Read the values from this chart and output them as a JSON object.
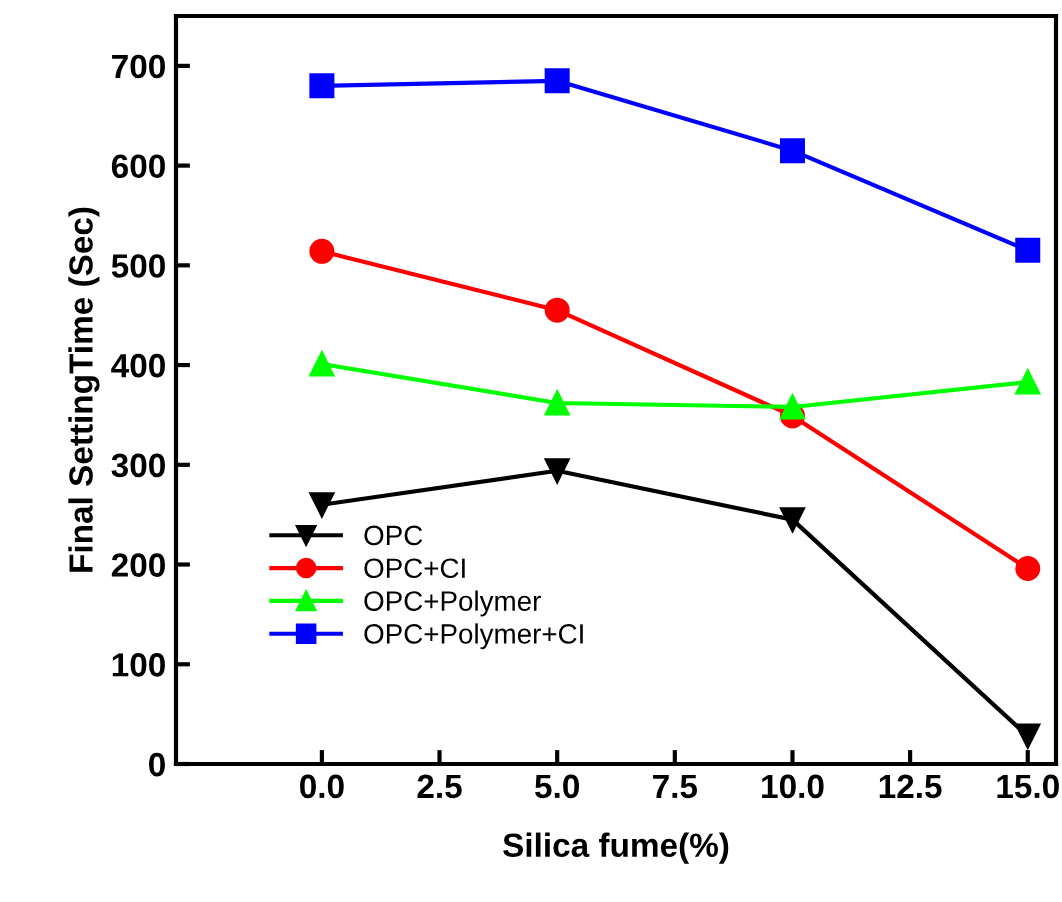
{
  "chart_data": {
    "type": "line",
    "xlabel": "Silica fume(%)",
    "ylabel": "Final SettingTime (Sec)",
    "x": [
      0,
      5,
      10,
      15
    ],
    "xlim": [
      -3.1,
      15.6
    ],
    "xticks": [
      {
        "value": 0,
        "label": "0.0"
      },
      {
        "value": 2.5,
        "label": "2.5"
      },
      {
        "value": 5,
        "label": "5.0"
      },
      {
        "value": 7.5,
        "label": "7.5"
      },
      {
        "value": 10,
        "label": "10.0"
      },
      {
        "value": 12.5,
        "label": "12.5"
      },
      {
        "value": 15,
        "label": "15.0"
      }
    ],
    "ylim": [
      0,
      750
    ],
    "yticks": [
      0,
      100,
      200,
      300,
      400,
      500,
      600,
      700
    ],
    "legend": "bottom left",
    "grid": false,
    "series": [
      {
        "name": "OPC",
        "color": "#000000",
        "marker": "triangle_down",
        "values": [
          260,
          294,
          245,
          28
        ]
      },
      {
        "name": "OPC+CI",
        "color": "#ff0000",
        "marker": "circle",
        "values": [
          514,
          455,
          349,
          196
        ]
      },
      {
        "name": "OPC+Polymer",
        "color": "#00ff00",
        "marker": "triangle",
        "values": [
          401,
          362,
          358,
          383
        ]
      },
      {
        "name": "OPC+Polymer+CI",
        "color": "#0000ff",
        "marker": "square",
        "values": [
          680,
          685,
          615,
          515
        ]
      }
    ]
  }
}
